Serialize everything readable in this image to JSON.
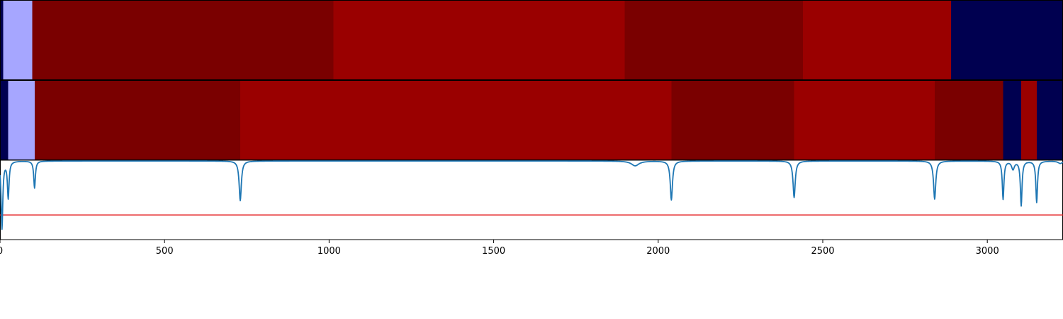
{
  "chart_data": [
    {
      "type": "heatmap",
      "title": "",
      "xlim": [
        0,
        3230
      ],
      "segments": [
        {
          "start": 0,
          "end": 10,
          "color": "#000050"
        },
        {
          "start": 10,
          "end": 98,
          "color": "#a6a6ff"
        },
        {
          "start": 98,
          "end": 1013,
          "color": "#7a0000"
        },
        {
          "start": 1013,
          "end": 1898,
          "color": "#9a0000"
        },
        {
          "start": 1898,
          "end": 2440,
          "color": "#7a0000"
        },
        {
          "start": 2440,
          "end": 2890,
          "color": "#9a0000"
        },
        {
          "start": 2890,
          "end": 3230,
          "color": "#000050"
        }
      ]
    },
    {
      "type": "heatmap",
      "title": "",
      "xlim": [
        0,
        3230
      ],
      "segments": [
        {
          "start": 0,
          "end": 25,
          "color": "#000050"
        },
        {
          "start": 25,
          "end": 105,
          "color": "#a6a6ff"
        },
        {
          "start": 105,
          "end": 730,
          "color": "#7a0000"
        },
        {
          "start": 730,
          "end": 2040,
          "color": "#9a0000"
        },
        {
          "start": 2040,
          "end": 2413,
          "color": "#7a0000"
        },
        {
          "start": 2413,
          "end": 2840,
          "color": "#9a0000"
        },
        {
          "start": 2840,
          "end": 3048,
          "color": "#7a0000"
        },
        {
          "start": 3048,
          "end": 3103,
          "color": "#000050"
        },
        {
          "start": 3103,
          "end": 3150,
          "color": "#9a0000"
        },
        {
          "start": 3150,
          "end": 3230,
          "color": "#000050"
        }
      ]
    },
    {
      "type": "line",
      "title": "",
      "xlabel": "",
      "ylabel": "",
      "xlim": [
        0,
        3230
      ],
      "ylim": [
        0,
        1
      ],
      "grid": false,
      "xticks": [
        0,
        500,
        1000,
        1500,
        2000,
        2500,
        3000
      ],
      "line_color": "#1f77b4",
      "threshold": {
        "y": 0.31,
        "color": "#e31a1c"
      },
      "baseline": 0.99,
      "dips": [
        {
          "x": 6,
          "depth": 0.85,
          "width": 3
        },
        {
          "x": 25,
          "depth": 0.46,
          "width": 3
        },
        {
          "x": 105,
          "depth": 0.34,
          "width": 3
        },
        {
          "x": 730,
          "depth": 0.5,
          "width": 4
        },
        {
          "x": 1930,
          "depth": 0.06,
          "width": 14
        },
        {
          "x": 2040,
          "depth": 0.49,
          "width": 4
        },
        {
          "x": 2413,
          "depth": 0.46,
          "width": 4
        },
        {
          "x": 2840,
          "depth": 0.48,
          "width": 4
        },
        {
          "x": 3048,
          "depth": 0.48,
          "width": 3
        },
        {
          "x": 3078,
          "depth": 0.1,
          "width": 5
        },
        {
          "x": 3103,
          "depth": 0.56,
          "width": 3
        },
        {
          "x": 3150,
          "depth": 0.52,
          "width": 3
        },
        {
          "x": 3222,
          "depth": 0.03,
          "width": 8
        }
      ]
    }
  ]
}
